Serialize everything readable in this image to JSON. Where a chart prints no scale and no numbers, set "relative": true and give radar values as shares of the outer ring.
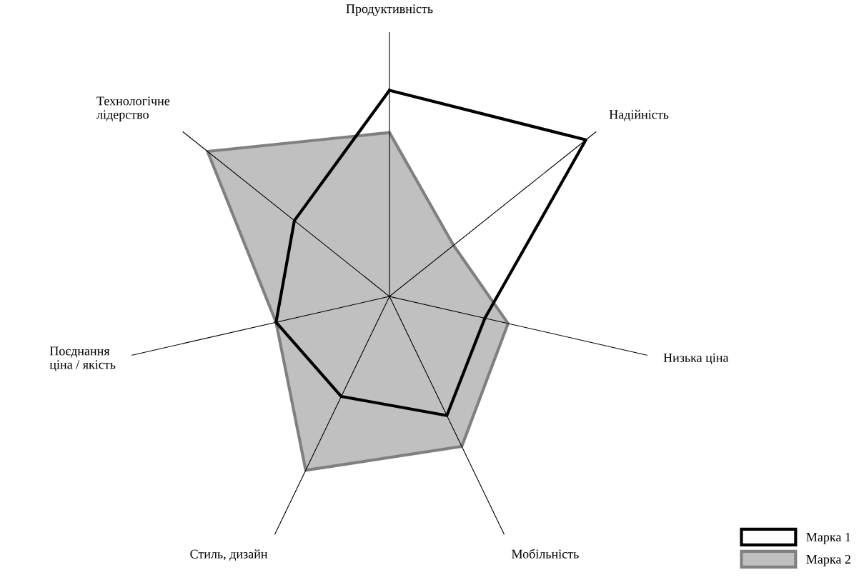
{
  "chart_data": {
    "type": "radar",
    "relative": true,
    "categories": [
      "Продуктивність",
      "Надійність",
      "Низька ціна",
      "Мобільність",
      "Стиль, дизайн",
      "Поєднання\nціна / якість",
      "Технологічне\nлідерство"
    ],
    "series": [
      {
        "name": "Марка 1",
        "color": "#000000",
        "values": [
          0.78,
          0.95,
          0.37,
          0.5,
          0.42,
          0.44,
          0.46
        ]
      },
      {
        "name": "Марка 2",
        "type": "area",
        "color": "#c0c0c0",
        "values": [
          0.62,
          0.31,
          0.46,
          0.63,
          0.73,
          0.44,
          0.88
        ]
      }
    ],
    "legend": "bottom right"
  }
}
